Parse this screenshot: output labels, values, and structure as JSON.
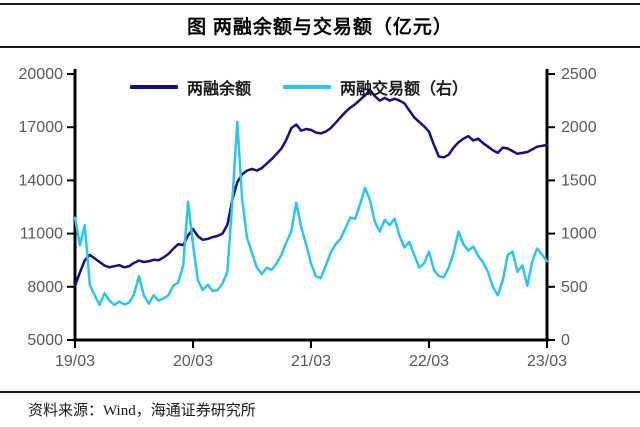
{
  "page": {
    "title": "图  两融余额与交易额（亿元）",
    "source": "资料来源：Wind，海通证券研究所"
  },
  "chart_data": {
    "type": "line",
    "title": "图 两融余额与交易额（亿元）",
    "unit": "亿元",
    "grid": false,
    "legend_position": "top-inside",
    "x_axis": {
      "tick_labels": [
        "19/03",
        "20/03",
        "21/03",
        "22/03",
        "23/03"
      ],
      "range_months": 48,
      "description": "monthly timeline from 2019/03 to 2023/03"
    },
    "left_axis": {
      "min": 5000,
      "max": 20000,
      "ticks": [
        "5000",
        "8000",
        "11000",
        "14000",
        "17000",
        "20000"
      ]
    },
    "right_axis": {
      "min": 0,
      "max": 2500,
      "ticks": [
        "0",
        "500",
        "1000",
        "1500",
        "2000",
        "2500"
      ]
    },
    "axis_label_color": "#595959",
    "axis_line_color": "#000000",
    "series": [
      {
        "name": "两融余额",
        "axis": "left",
        "color": "#12127e",
        "x_step_months": 0.5,
        "values": [
          8050,
          8800,
          9500,
          9800,
          9600,
          9400,
          9200,
          9100,
          9160,
          9220,
          9100,
          9160,
          9350,
          9480,
          9400,
          9440,
          9520,
          9500,
          9650,
          9850,
          10150,
          10400,
          10350,
          10900,
          11260,
          10850,
          10650,
          10700,
          10800,
          10870,
          11000,
          11500,
          12900,
          13900,
          14350,
          14550,
          14650,
          14550,
          14700,
          14950,
          15200,
          15500,
          15800,
          16300,
          16950,
          17150,
          16800,
          16900,
          16850,
          16700,
          16650,
          16750,
          16950,
          17250,
          17550,
          17850,
          18100,
          18300,
          18550,
          18800,
          19100,
          18750,
          18500,
          18650,
          18500,
          18600,
          18500,
          18350,
          17950,
          17550,
          17300,
          17050,
          16750,
          16000,
          15350,
          15300,
          15450,
          15850,
          16150,
          16350,
          16500,
          16250,
          16350,
          16100,
          15900,
          15700,
          15550,
          15850,
          15800,
          15650,
          15500,
          15550,
          15600,
          15750,
          15900,
          15950,
          16000
        ]
      },
      {
        "name": "两融交易额（右）",
        "axis": "right",
        "color": "#2ec4ee",
        "x_step_months": 0.5,
        "values": [
          1150,
          890,
          1080,
          520,
          420,
          330,
          440,
          370,
          330,
          360,
          335,
          350,
          430,
          600,
          420,
          340,
          420,
          370,
          390,
          420,
          510,
          540,
          700,
          1300,
          900,
          560,
          470,
          520,
          460,
          470,
          530,
          640,
          1300,
          2050,
          1320,
          960,
          820,
          680,
          620,
          680,
          660,
          720,
          800,
          920,
          1020,
          1290,
          1060,
          900,
          720,
          600,
          580,
          700,
          820,
          900,
          950,
          1050,
          1150,
          1140,
          1280,
          1430,
          1310,
          1110,
          1020,
          1130,
          1080,
          1140,
          980,
          870,
          920,
          800,
          680,
          720,
          830,
          660,
          600,
          590,
          680,
          820,
          1020,
          900,
          840,
          880,
          790,
          730,
          640,
          500,
          420,
          560,
          800,
          830,
          640,
          700,
          510,
          740,
          860,
          800,
          740
        ]
      }
    ]
  }
}
